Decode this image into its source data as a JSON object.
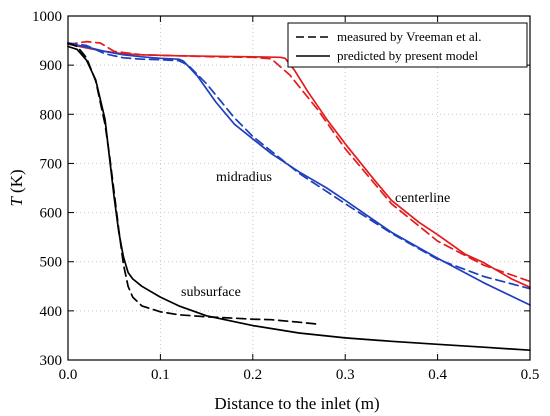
{
  "chart_data": {
    "type": "line",
    "title": "",
    "xlabel": "Distance to the inlet (m)",
    "ylabel_italic": "T",
    "ylabel_unit": " (K)",
    "xlim": [
      0.0,
      0.5
    ],
    "ylim": [
      300,
      1000
    ],
    "xticks": [
      0.0,
      0.1,
      0.2,
      0.3,
      0.4,
      0.5
    ],
    "xtick_labels": [
      "0.0",
      "0.1",
      "0.2",
      "0.3",
      "0.4",
      "0.5"
    ],
    "yticks": [
      300,
      400,
      500,
      600,
      700,
      800,
      900,
      1000
    ],
    "ytick_labels": [
      "300",
      "400",
      "500",
      "600",
      "700",
      "800",
      "900",
      "1000"
    ],
    "grid": true,
    "legend_position": "top-right",
    "legend": [
      {
        "label": "measured by Vreeman et al.",
        "style": "dashed",
        "color": "#000000"
      },
      {
        "label": "predicted by present model",
        "style": "solid",
        "color": "#000000"
      }
    ],
    "annotations": [
      {
        "text": "centerline",
        "x": 0.385,
        "y": 612
      },
      {
        "text": "midradius",
        "x": 0.195,
        "y": 660
      },
      {
        "text": "subsurface",
        "x": 0.155,
        "y": 434
      }
    ],
    "series": [
      {
        "curve": "centerline",
        "kind": "measured",
        "color": "#e41a1c",
        "dashed": true,
        "x": [
          0.0,
          0.02,
          0.035,
          0.05,
          0.08,
          0.12,
          0.16,
          0.2,
          0.22,
          0.24,
          0.27,
          0.3,
          0.35,
          0.4,
          0.45,
          0.5
        ],
        "y": [
          942,
          948,
          945,
          928,
          921,
          919,
          917,
          916,
          913,
          880,
          810,
          730,
          618,
          542,
          493,
          460
        ]
      },
      {
        "curve": "centerline",
        "kind": "predicted",
        "color": "#e41a1c",
        "dashed": false,
        "x": [
          0.0,
          0.02,
          0.04,
          0.06,
          0.08,
          0.1,
          0.12,
          0.16,
          0.2,
          0.23,
          0.235,
          0.245,
          0.26,
          0.28,
          0.3,
          0.33,
          0.35,
          0.38,
          0.4,
          0.43,
          0.45,
          0.48,
          0.5
        ],
        "y": [
          943,
          935,
          928,
          923,
          921,
          920,
          919,
          918,
          917,
          916,
          914,
          890,
          845,
          790,
          740,
          670,
          625,
          580,
          555,
          515,
          498,
          465,
          448
        ]
      },
      {
        "curve": "midradius",
        "kind": "measured",
        "color": "#1f3fbf",
        "dashed": true,
        "x": [
          0.0,
          0.02,
          0.04,
          0.06,
          0.08,
          0.1,
          0.12,
          0.13,
          0.15,
          0.18,
          0.2,
          0.25,
          0.3,
          0.35,
          0.4,
          0.45,
          0.5
        ],
        "y": [
          945,
          940,
          923,
          915,
          912,
          911,
          909,
          900,
          862,
          793,
          755,
          680,
          618,
          558,
          505,
          470,
          445
        ]
      },
      {
        "curve": "midradius",
        "kind": "predicted",
        "color": "#1f3fbf",
        "dashed": false,
        "x": [
          0.0,
          0.02,
          0.04,
          0.06,
          0.08,
          0.1,
          0.12,
          0.125,
          0.14,
          0.16,
          0.18,
          0.2,
          0.22,
          0.25,
          0.28,
          0.3,
          0.33,
          0.35,
          0.4,
          0.45,
          0.5
        ],
        "y": [
          944,
          937,
          928,
          921,
          917,
          914,
          912,
          908,
          878,
          825,
          780,
          750,
          720,
          683,
          650,
          625,
          586,
          560,
          507,
          457,
          412
        ]
      },
      {
        "curve": "subsurface",
        "kind": "measured",
        "color": "#000000",
        "dashed": true,
        "x": [
          0.0,
          0.01,
          0.02,
          0.03,
          0.04,
          0.045,
          0.05,
          0.055,
          0.06,
          0.065,
          0.07,
          0.08,
          0.1,
          0.12,
          0.15,
          0.18,
          0.2,
          0.22,
          0.25,
          0.27
        ],
        "y": [
          945,
          938,
          915,
          868,
          780,
          715,
          640,
          565,
          495,
          450,
          428,
          410,
          398,
          392,
          388,
          385,
          383,
          382,
          377,
          373
        ]
      },
      {
        "curve": "subsurface",
        "kind": "predicted",
        "color": "#000000",
        "dashed": false,
        "x": [
          0.0,
          0.01,
          0.02,
          0.03,
          0.04,
          0.045,
          0.05,
          0.055,
          0.06,
          0.065,
          0.07,
          0.08,
          0.1,
          0.12,
          0.15,
          0.2,
          0.25,
          0.3,
          0.35,
          0.4,
          0.45,
          0.5
        ],
        "y": [
          938,
          932,
          910,
          870,
          790,
          710,
          630,
          560,
          510,
          478,
          465,
          450,
          428,
          410,
          390,
          370,
          355,
          345,
          338,
          332,
          326,
          320
        ]
      }
    ]
  }
}
